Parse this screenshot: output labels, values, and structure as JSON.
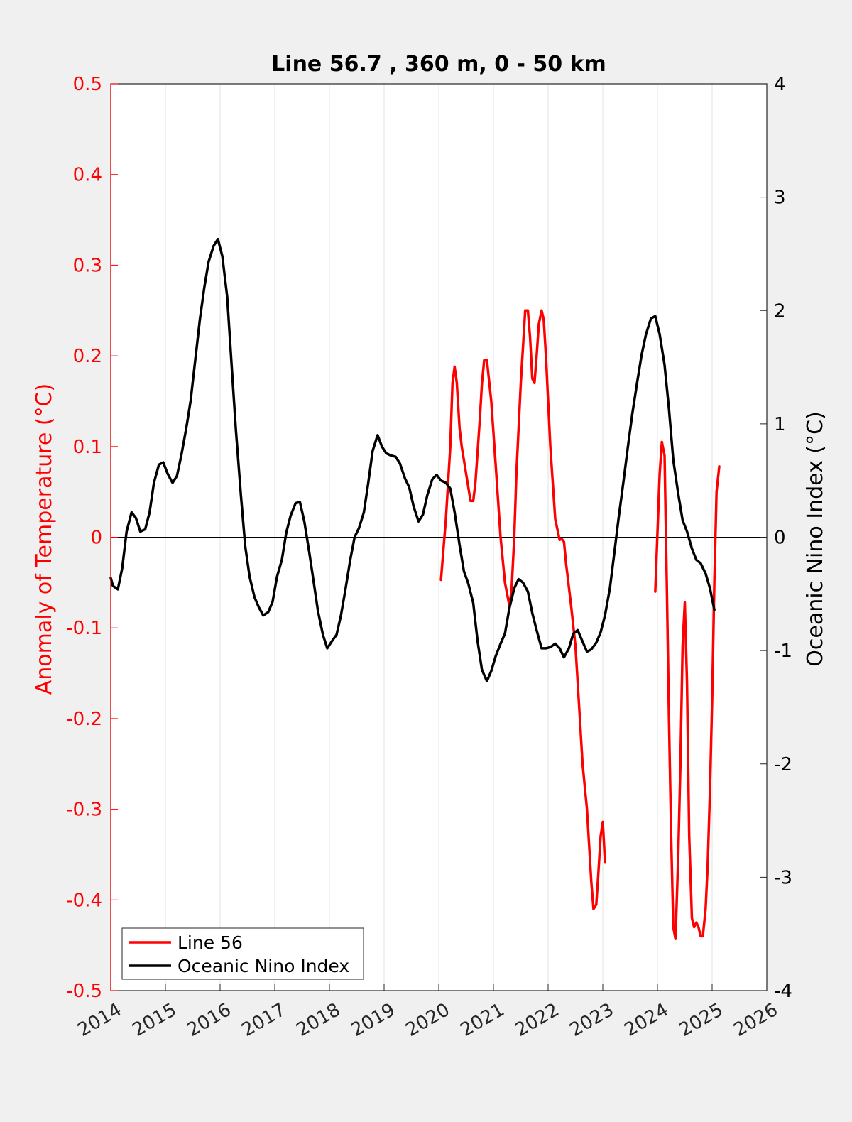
{
  "chart_data": {
    "type": "line",
    "title": "Line 56.7 , 360 m, 0 - 50 km",
    "xlabel": "",
    "ylabel_left": "Anomaly of Temperature (°C)",
    "ylabel_right": "Oceanic Nino Index (°C)",
    "xlim": [
      2014,
      2026
    ],
    "ylim_left": [
      -0.5,
      0.5
    ],
    "ylim_right": [
      -4,
      4
    ],
    "x_ticks": [
      "2014",
      "2015",
      "2016",
      "2017",
      "2018",
      "2019",
      "2020",
      "2021",
      "2022",
      "2023",
      "2024",
      "2025",
      "2026"
    ],
    "y_left_ticks": [
      "-0.5",
      "-0.4",
      "-0.3",
      "-0.2",
      "-0.1",
      "0",
      "0.1",
      "0.2",
      "0.3",
      "0.4",
      "0.5"
    ],
    "y_right_ticks": [
      "-4",
      "-3",
      "-2",
      "-1",
      "0",
      "1",
      "2",
      "3",
      "4"
    ],
    "grid": "vertical",
    "legend_position": "bottom-left",
    "colors": {
      "line56": "#ff0000",
      "oni": "#000000",
      "left_axis": "#ff0000",
      "right_axis": "#000000"
    },
    "series": [
      {
        "name": "Line 56",
        "axis": "left",
        "segments": [
          [
            [
              2020.04,
              -0.047
            ],
            [
              2020.13,
              0.02
            ],
            [
              2020.21,
              0.1
            ],
            [
              2020.25,
              0.17
            ],
            [
              2020.29,
              0.188
            ],
            [
              2020.33,
              0.17
            ],
            [
              2020.38,
              0.12
            ],
            [
              2020.42,
              0.1
            ],
            [
              2020.5,
              0.07
            ],
            [
              2020.58,
              0.04
            ],
            [
              2020.63,
              0.04
            ],
            [
              2020.67,
              0.06
            ],
            [
              2020.75,
              0.13
            ],
            [
              2020.79,
              0.17
            ],
            [
              2020.83,
              0.195
            ],
            [
              2020.88,
              0.195
            ],
            [
              2020.96,
              0.15
            ],
            [
              2021.04,
              0.08
            ],
            [
              2021.13,
              0.0
            ],
            [
              2021.21,
              -0.05
            ],
            [
              2021.29,
              -0.075
            ],
            [
              2021.33,
              -0.06
            ],
            [
              2021.38,
              0.0
            ],
            [
              2021.42,
              0.07
            ],
            [
              2021.5,
              0.17
            ],
            [
              2021.58,
              0.25
            ],
            [
              2021.63,
              0.25
            ],
            [
              2021.67,
              0.22
            ],
            [
              2021.71,
              0.175
            ],
            [
              2021.75,
              0.17
            ],
            [
              2021.79,
              0.2
            ],
            [
              2021.83,
              0.235
            ],
            [
              2021.88,
              0.25
            ],
            [
              2021.92,
              0.24
            ],
            [
              2021.96,
              0.2
            ],
            [
              2022.04,
              0.1
            ],
            [
              2022.13,
              0.02
            ],
            [
              2022.21,
              -0.003
            ],
            [
              2022.25,
              -0.002
            ],
            [
              2022.29,
              -0.005
            ],
            [
              2022.33,
              -0.03
            ],
            [
              2022.42,
              -0.075
            ],
            [
              2022.5,
              -0.12
            ],
            [
              2022.58,
              -0.2
            ],
            [
              2022.63,
              -0.25
            ],
            [
              2022.71,
              -0.3
            ],
            [
              2022.79,
              -0.38
            ],
            [
              2022.83,
              -0.41
            ],
            [
              2022.88,
              -0.405
            ],
            [
              2022.92,
              -0.37
            ],
            [
              2022.96,
              -0.33
            ],
            [
              2023.0,
              -0.314
            ],
            [
              2023.04,
              -0.358
            ]
          ],
          [
            [
              2023.96,
              -0.06
            ],
            [
              2024.04,
              0.07
            ],
            [
              2024.08,
              0.105
            ],
            [
              2024.13,
              0.09
            ],
            [
              2024.17,
              -0.05
            ],
            [
              2024.21,
              -0.2
            ],
            [
              2024.25,
              -0.33
            ],
            [
              2024.29,
              -0.43
            ],
            [
              2024.33,
              -0.443
            ],
            [
              2024.38,
              -0.35
            ],
            [
              2024.42,
              -0.25
            ],
            [
              2024.46,
              -0.12
            ],
            [
              2024.5,
              -0.072
            ],
            [
              2024.54,
              -0.16
            ],
            [
              2024.58,
              -0.33
            ],
            [
              2024.63,
              -0.42
            ],
            [
              2024.67,
              -0.43
            ],
            [
              2024.71,
              -0.425
            ],
            [
              2024.75,
              -0.43
            ],
            [
              2024.79,
              -0.44
            ],
            [
              2024.83,
              -0.44
            ],
            [
              2024.88,
              -0.41
            ],
            [
              2024.92,
              -0.36
            ],
            [
              2024.96,
              -0.28
            ],
            [
              2025.0,
              -0.18
            ],
            [
              2025.04,
              -0.05
            ],
            [
              2025.08,
              0.05
            ],
            [
              2025.13,
              0.078
            ]
          ]
        ]
      },
      {
        "name": "Oceanic Nino Index",
        "axis": "right",
        "segments": [
          [
            [
              2014.0,
              -0.36
            ],
            [
              2014.04,
              -0.43
            ],
            [
              2014.13,
              -0.46
            ],
            [
              2014.21,
              -0.27
            ],
            [
              2014.29,
              0.05
            ],
            [
              2014.38,
              0.22
            ],
            [
              2014.46,
              0.17
            ],
            [
              2014.54,
              0.05
            ],
            [
              2014.63,
              0.07
            ],
            [
              2014.71,
              0.22
            ],
            [
              2014.79,
              0.48
            ],
            [
              2014.88,
              0.64
            ],
            [
              2014.96,
              0.66
            ],
            [
              2015.04,
              0.56
            ],
            [
              2015.13,
              0.48
            ],
            [
              2015.21,
              0.54
            ],
            [
              2015.29,
              0.72
            ],
            [
              2015.38,
              0.96
            ],
            [
              2015.46,
              1.2
            ],
            [
              2015.54,
              1.54
            ],
            [
              2015.63,
              1.92
            ],
            [
              2015.71,
              2.2
            ],
            [
              2015.79,
              2.43
            ],
            [
              2015.88,
              2.57
            ],
            [
              2015.96,
              2.63
            ],
            [
              2016.04,
              2.48
            ],
            [
              2016.13,
              2.12
            ],
            [
              2016.21,
              1.52
            ],
            [
              2016.29,
              0.94
            ],
            [
              2016.38,
              0.37
            ],
            [
              2016.46,
              -0.08
            ],
            [
              2016.54,
              -0.35
            ],
            [
              2016.63,
              -0.53
            ],
            [
              2016.71,
              -0.62
            ],
            [
              2016.79,
              -0.69
            ],
            [
              2016.88,
              -0.66
            ],
            [
              2016.96,
              -0.57
            ],
            [
              2017.04,
              -0.35
            ],
            [
              2017.13,
              -0.2
            ],
            [
              2017.21,
              0.04
            ],
            [
              2017.29,
              0.19
            ],
            [
              2017.38,
              0.3
            ],
            [
              2017.46,
              0.31
            ],
            [
              2017.54,
              0.14
            ],
            [
              2017.63,
              -0.13
            ],
            [
              2017.71,
              -0.39
            ],
            [
              2017.79,
              -0.65
            ],
            [
              2017.88,
              -0.86
            ],
            [
              2017.96,
              -0.98
            ],
            [
              2018.04,
              -0.92
            ],
            [
              2018.13,
              -0.86
            ],
            [
              2018.21,
              -0.69
            ],
            [
              2018.29,
              -0.47
            ],
            [
              2018.38,
              -0.2
            ],
            [
              2018.46,
              0.0
            ],
            [
              2018.54,
              0.08
            ],
            [
              2018.63,
              0.22
            ],
            [
              2018.71,
              0.48
            ],
            [
              2018.79,
              0.76
            ],
            [
              2018.88,
              0.9
            ],
            [
              2018.96,
              0.8
            ],
            [
              2019.04,
              0.74
            ],
            [
              2019.13,
              0.72
            ],
            [
              2019.21,
              0.71
            ],
            [
              2019.29,
              0.65
            ],
            [
              2019.38,
              0.52
            ],
            [
              2019.46,
              0.44
            ],
            [
              2019.54,
              0.27
            ],
            [
              2019.63,
              0.14
            ],
            [
              2019.71,
              0.2
            ],
            [
              2019.79,
              0.37
            ],
            [
              2019.88,
              0.51
            ],
            [
              2019.96,
              0.55
            ],
            [
              2020.04,
              0.5
            ],
            [
              2020.13,
              0.48
            ],
            [
              2020.21,
              0.43
            ],
            [
              2020.29,
              0.22
            ],
            [
              2020.38,
              -0.07
            ],
            [
              2020.46,
              -0.3
            ],
            [
              2020.54,
              -0.41
            ],
            [
              2020.63,
              -0.58
            ],
            [
              2020.71,
              -0.92
            ],
            [
              2020.79,
              -1.17
            ],
            [
              2020.88,
              -1.27
            ],
            [
              2020.96,
              -1.18
            ],
            [
              2021.04,
              -1.05
            ],
            [
              2021.13,
              -0.94
            ],
            [
              2021.21,
              -0.85
            ],
            [
              2021.29,
              -0.63
            ],
            [
              2021.38,
              -0.45
            ],
            [
              2021.46,
              -0.37
            ],
            [
              2021.54,
              -0.4
            ],
            [
              2021.63,
              -0.48
            ],
            [
              2021.71,
              -0.67
            ],
            [
              2021.79,
              -0.82
            ],
            [
              2021.88,
              -0.98
            ],
            [
              2021.96,
              -0.98
            ],
            [
              2022.04,
              -0.97
            ],
            [
              2022.13,
              -0.94
            ],
            [
              2022.21,
              -0.98
            ],
            [
              2022.29,
              -1.06
            ],
            [
              2022.38,
              -0.98
            ],
            [
              2022.46,
              -0.85
            ],
            [
              2022.54,
              -0.82
            ],
            [
              2022.63,
              -0.92
            ],
            [
              2022.71,
              -1.01
            ],
            [
              2022.79,
              -0.99
            ],
            [
              2022.88,
              -0.93
            ],
            [
              2022.96,
              -0.84
            ],
            [
              2023.04,
              -0.69
            ],
            [
              2023.13,
              -0.45
            ],
            [
              2023.21,
              -0.14
            ],
            [
              2023.29,
              0.17
            ],
            [
              2023.38,
              0.5
            ],
            [
              2023.46,
              0.8
            ],
            [
              2023.54,
              1.09
            ],
            [
              2023.63,
              1.37
            ],
            [
              2023.71,
              1.61
            ],
            [
              2023.79,
              1.79
            ],
            [
              2023.88,
              1.93
            ],
            [
              2023.96,
              1.95
            ],
            [
              2024.04,
              1.79
            ],
            [
              2024.13,
              1.52
            ],
            [
              2024.21,
              1.13
            ],
            [
              2024.29,
              0.68
            ],
            [
              2024.38,
              0.38
            ],
            [
              2024.46,
              0.15
            ],
            [
              2024.54,
              0.05
            ],
            [
              2024.63,
              -0.1
            ],
            [
              2024.71,
              -0.2
            ],
            [
              2024.79,
              -0.23
            ],
            [
              2024.88,
              -0.32
            ],
            [
              2024.96,
              -0.45
            ],
            [
              2025.04,
              -0.64
            ]
          ]
        ]
      }
    ]
  }
}
